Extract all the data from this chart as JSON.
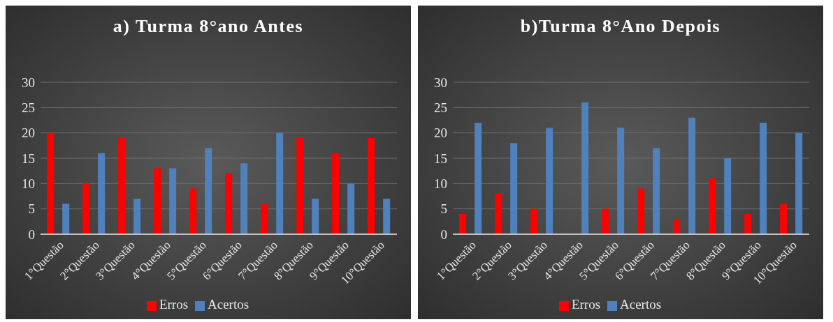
{
  "chart_data": [
    {
      "type": "bar",
      "title": "a) Turma 8°ano Antes",
      "categories": [
        "1°Questão",
        "2°Questão",
        "3°Questão",
        "4°Questão",
        "5°Questão",
        "6°Questão",
        "7°Questão",
        "8°Questão",
        "9°Questão",
        "10°Questão"
      ],
      "series": [
        {
          "name": "Erros",
          "color": "#ff0000",
          "values": [
            20,
            10,
            19,
            13,
            9,
            12,
            6,
            19,
            16,
            19
          ]
        },
        {
          "name": "Acertos",
          "color": "#4f81bd",
          "values": [
            6,
            16,
            7,
            13,
            17,
            14,
            20,
            7,
            10,
            7
          ]
        }
      ],
      "ylim": [
        0,
        30
      ],
      "yticks": [
        0,
        5,
        10,
        15,
        20,
        25,
        30
      ],
      "grid": "y",
      "legend": "bottom"
    },
    {
      "type": "bar",
      "title": "b)Turma 8°Ano Depois",
      "categories": [
        "1°Questão",
        "2°Questão",
        "3°Questão",
        "4°Questão",
        "5°Questão",
        "6°Questão",
        "7°Questão",
        "8°Questão",
        "9°Questão",
        "10°Questão"
      ],
      "series": [
        {
          "name": "Erros",
          "color": "#ff0000",
          "values": [
            4,
            8,
            5,
            0,
            5,
            9,
            3,
            11,
            4,
            6
          ]
        },
        {
          "name": "Acertos",
          "color": "#4f81bd",
          "values": [
            22,
            18,
            21,
            26,
            21,
            17,
            23,
            15,
            22,
            20
          ]
        }
      ],
      "ylim": [
        0,
        30
      ],
      "yticks": [
        0,
        5,
        10,
        15,
        20,
        25,
        30
      ],
      "grid": "y",
      "legend": "bottom"
    }
  ]
}
